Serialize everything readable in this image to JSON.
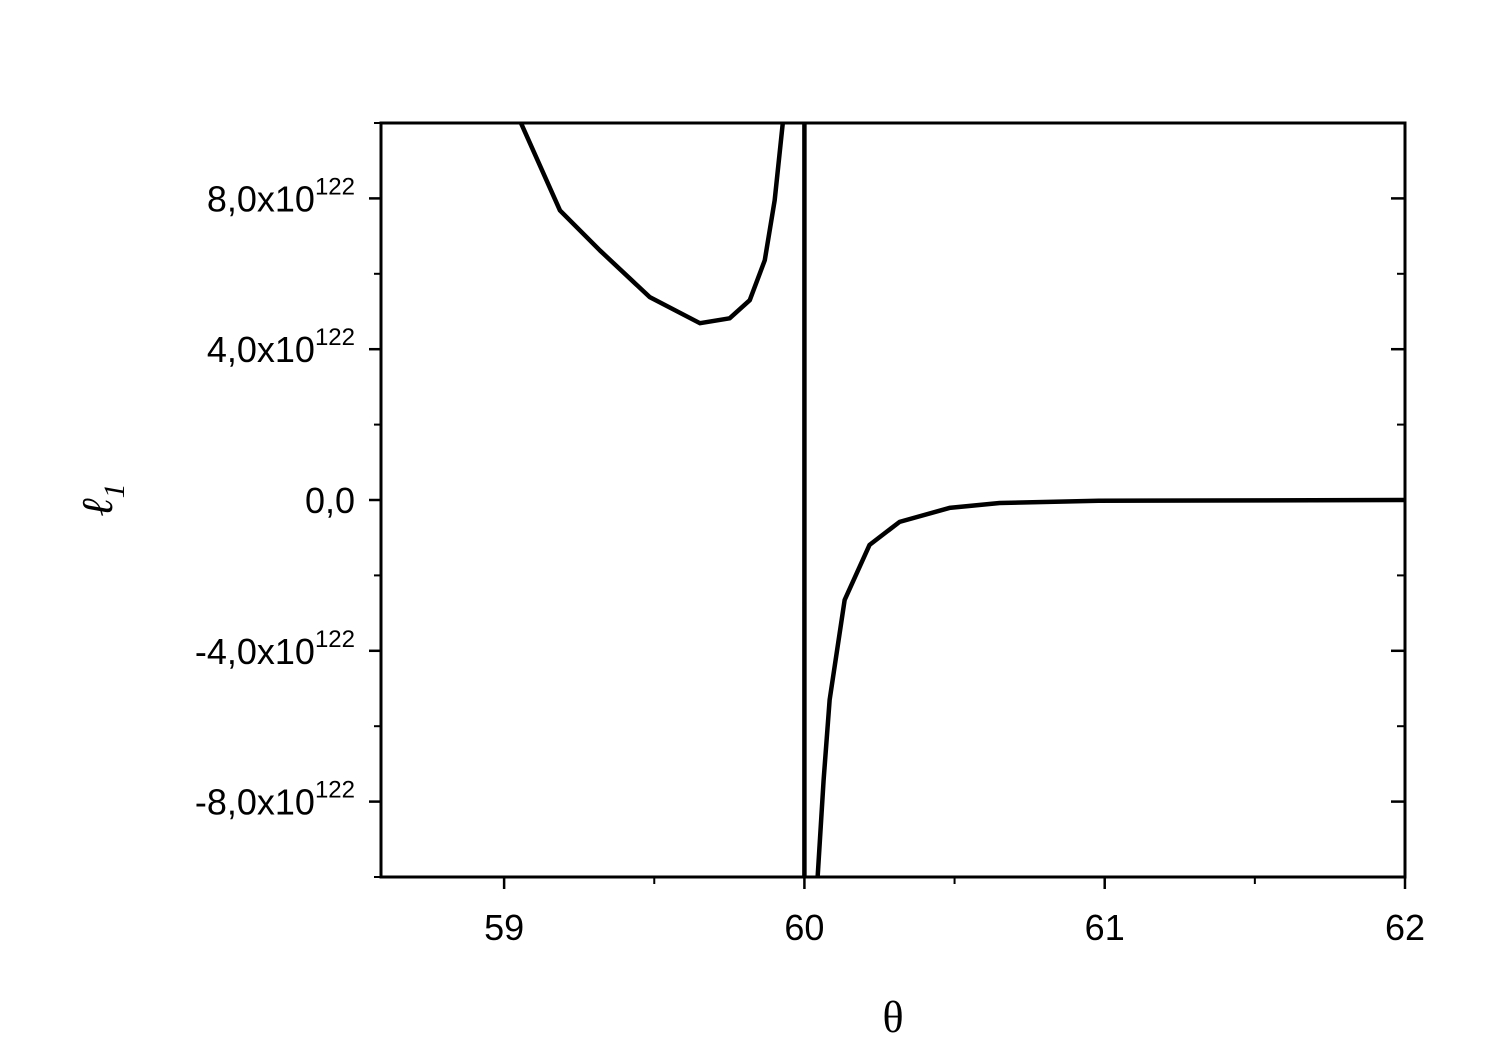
{
  "chart_data": {
    "type": "line",
    "xlabel": "θ",
    "ylabel": "ℓ",
    "ylabel_sub": "1",
    "xlim": [
      58.59,
      62
    ],
    "ylim": [
      -1e+123,
      1e+123
    ],
    "xticks": [
      59,
      60,
      61,
      62
    ],
    "yticks": [
      {
        "value": -8e+122,
        "label": "-8,0x10",
        "superscript": "122"
      },
      {
        "value": -4e+122,
        "label": "-4,0x10",
        "superscript": "122"
      },
      {
        "value": 0,
        "label": "0,0"
      },
      {
        "value": 4e+122,
        "label": "4,0x10",
        "superscript": "122"
      },
      {
        "value": 8e+122,
        "label": "8,0x10",
        "superscript": "122"
      }
    ],
    "series": [
      {
        "color": "#000000",
        "x": [
          59.056,
          59.186,
          59.319,
          59.485,
          59.652,
          59.751,
          59.818,
          59.868,
          59.901,
          59.928,
          null,
          60.0,
          60.0,
          null,
          60.044,
          60.064,
          60.084,
          60.134,
          60.217,
          60.317,
          60.483,
          60.65,
          60.98,
          62
        ],
        "values": [
          1e+123,
          7.68e+122,
          6.62e+122,
          5.38e+122,
          4.69e+122,
          4.82e+122,
          5.3e+122,
          6.36e+122,
          7.95e+122,
          1e+123,
          null,
          1e+123,
          -1e+123,
          null,
          -1e+123,
          -7.42e+122,
          -5.3e+122,
          -2.65e+122,
          -1.19e+122,
          -5.8e+121,
          -2.1e+121,
          -8e+120,
          -2e+120,
          0
        ]
      }
    ]
  }
}
